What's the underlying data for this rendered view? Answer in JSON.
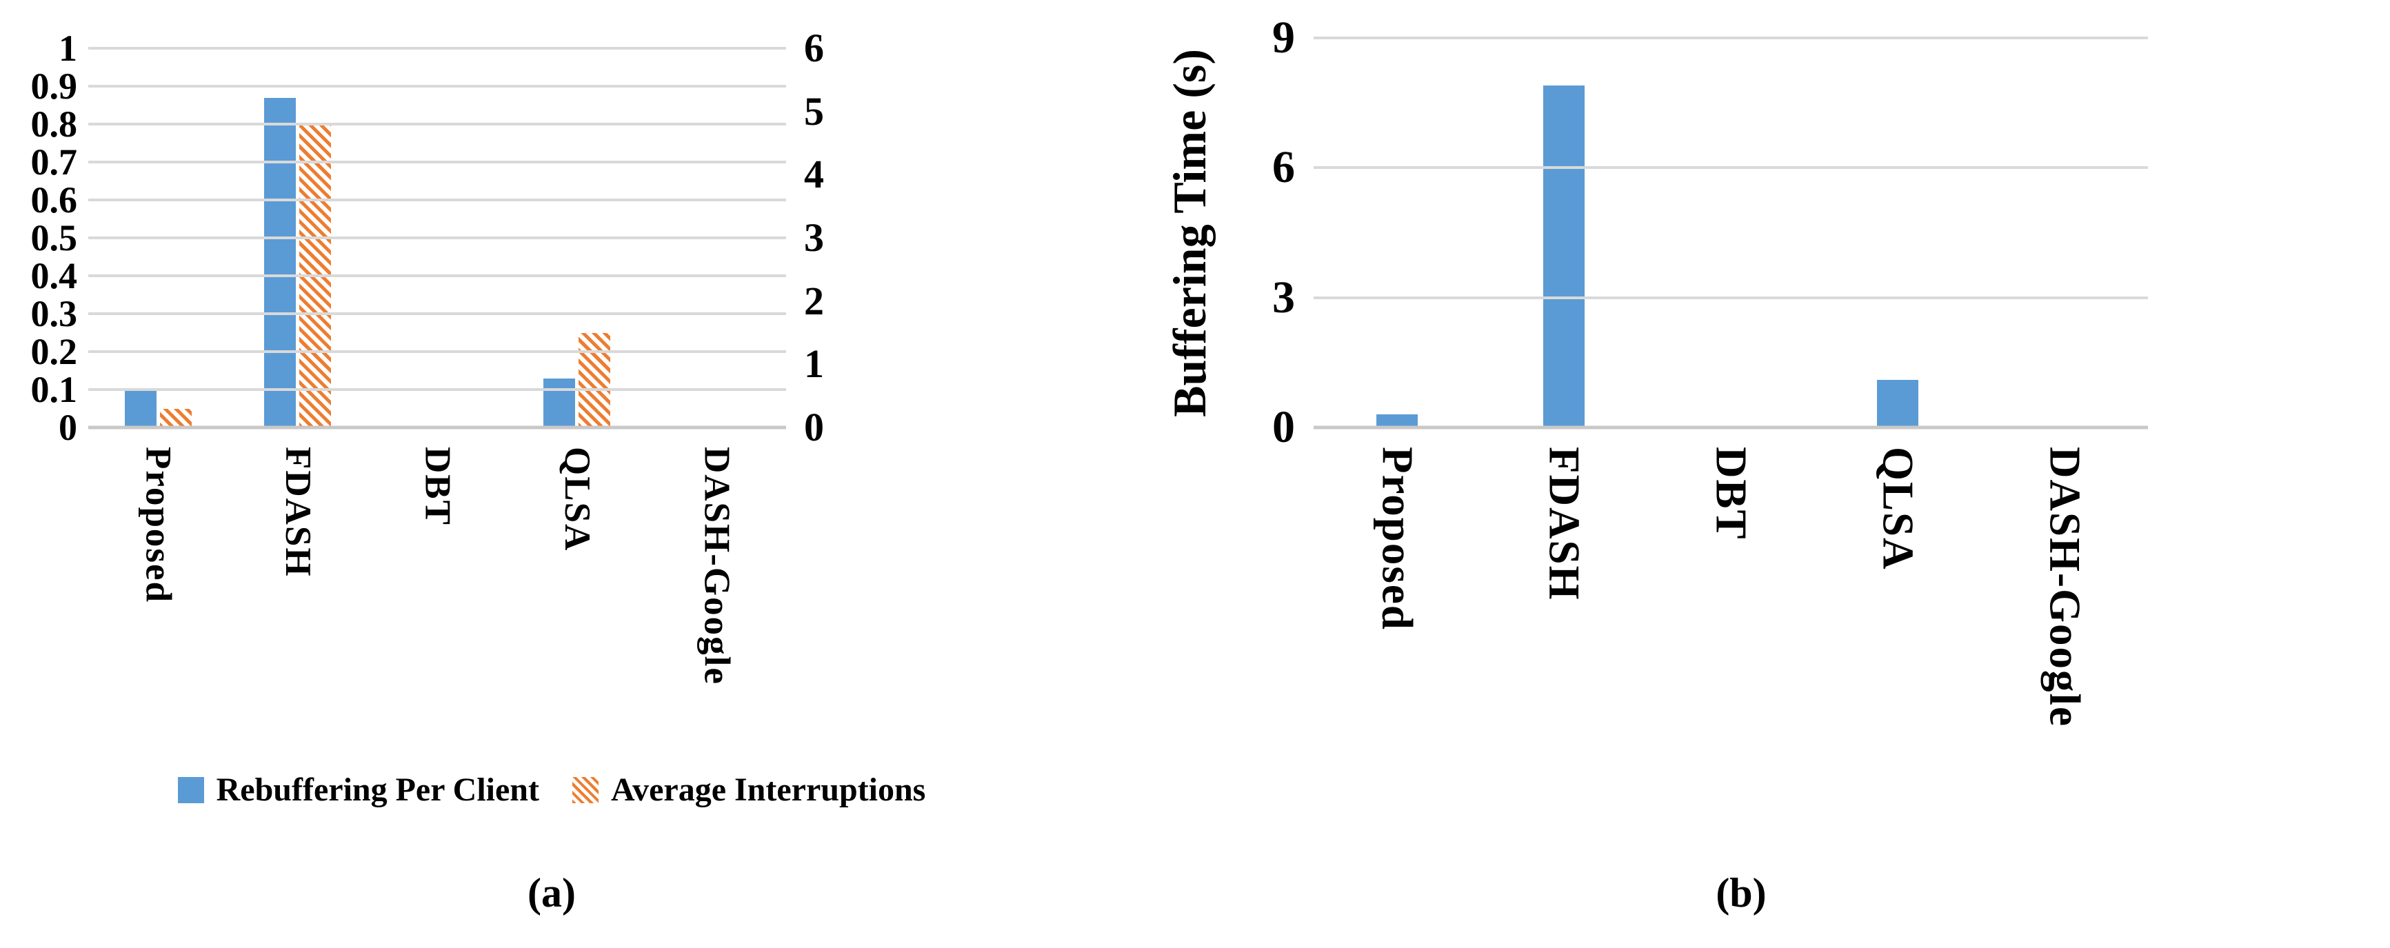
{
  "colors": {
    "bar_blue": "#5B9BD5",
    "bar_orange": "#ED7D31",
    "gridline": "#D9D9D9",
    "axis_line": "#C8C8C8",
    "text": "#000000"
  },
  "chart_data": [
    {
      "id": "a",
      "type": "bar",
      "title": "",
      "caption": "(a)",
      "categories": [
        "Proposed",
        "FDASH",
        "DBT",
        "QLSA",
        "DASH-Google"
      ],
      "series": [
        {
          "name": "Rebuffering Per Client",
          "axis": "left",
          "style": "solid-blue",
          "values": [
            0.1,
            0.87,
            0,
            0.13,
            0
          ]
        },
        {
          "name": "Average Interruptions",
          "axis": "right",
          "style": "hatched-orange",
          "values": [
            0.3,
            4.8,
            0,
            1.5,
            0
          ]
        }
      ],
      "left_axis": {
        "min": 0,
        "max": 1,
        "ticks": [
          "1",
          "0.9",
          "0.8",
          "0.7",
          "0.6",
          "0.5",
          "0.4",
          "0.3",
          "0.2",
          "0.1",
          "0"
        ]
      },
      "right_axis": {
        "min": 0,
        "max": 6,
        "ticks": [
          "6",
          "5",
          "4",
          "3",
          "2",
          "1",
          "0"
        ]
      },
      "grid": "horizontal",
      "legend_position": "bottom"
    },
    {
      "id": "b",
      "type": "bar",
      "title": "",
      "caption": "(b)",
      "ylabel": "Buffering Time (s)",
      "categories": [
        "Proposed",
        "FDASH",
        "DBT",
        "QLSA",
        "DASH-Google"
      ],
      "series": [
        {
          "name": "Buffering Time (s)",
          "axis": "left",
          "style": "solid-blue",
          "values": [
            0.3,
            7.9,
            0,
            1.1,
            0
          ]
        }
      ],
      "left_axis": {
        "min": 0,
        "max": 9,
        "ticks": [
          "9",
          "6",
          "3",
          "0"
        ]
      },
      "grid": "horizontal",
      "legend_position": "none"
    }
  ]
}
